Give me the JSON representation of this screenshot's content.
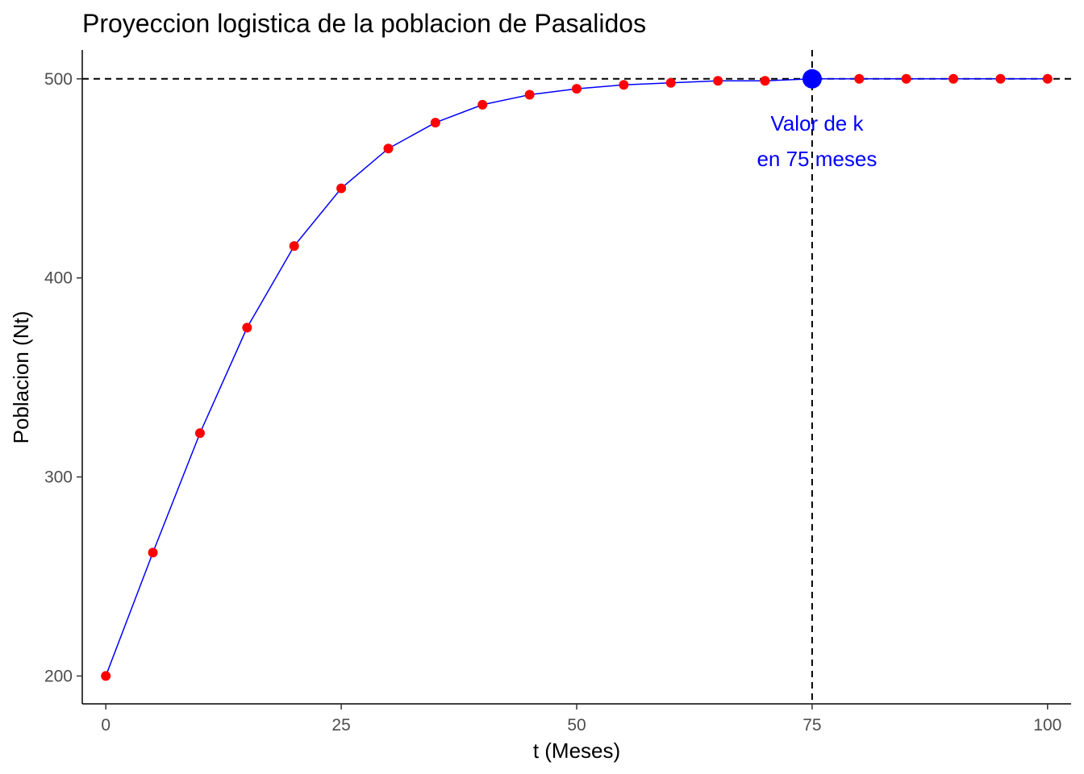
{
  "chart_data": {
    "type": "line",
    "title": "Proyeccion logistica de la poblacion de Pasalidos",
    "xlabel": "t (Meses)",
    "ylabel": "Poblacion (Nt)",
    "xlim": [
      -2.5,
      102.5
    ],
    "ylim": [
      186,
      514.5
    ],
    "x_ticks": [
      0,
      25,
      50,
      75,
      100
    ],
    "y_ticks": [
      200,
      300,
      400,
      500
    ],
    "grid": false,
    "legend": "none",
    "series": [
      {
        "x": [
          0,
          5,
          10,
          15,
          20,
          25,
          30,
          35,
          40,
          45,
          50,
          55,
          60,
          65,
          70,
          75,
          80,
          85,
          90,
          95,
          100
        ],
        "values": [
          200,
          262,
          322,
          375,
          416,
          445,
          465,
          478,
          487,
          492,
          495,
          497,
          498,
          499,
          499,
          500,
          500,
          500,
          500,
          500,
          500
        ],
        "line_color": "#0000ff",
        "point_color": "#ff0000"
      }
    ],
    "reference_lines": {
      "horizontal_y": 500,
      "vertical_x": 75,
      "style": "dashed",
      "color": "#000000"
    },
    "highlight_point": {
      "x": 75,
      "y": 500,
      "color": "#0000ff"
    },
    "annotation": {
      "lines": [
        "Valor de k",
        "en 75 meses"
      ],
      "color": "#0000ff"
    }
  }
}
